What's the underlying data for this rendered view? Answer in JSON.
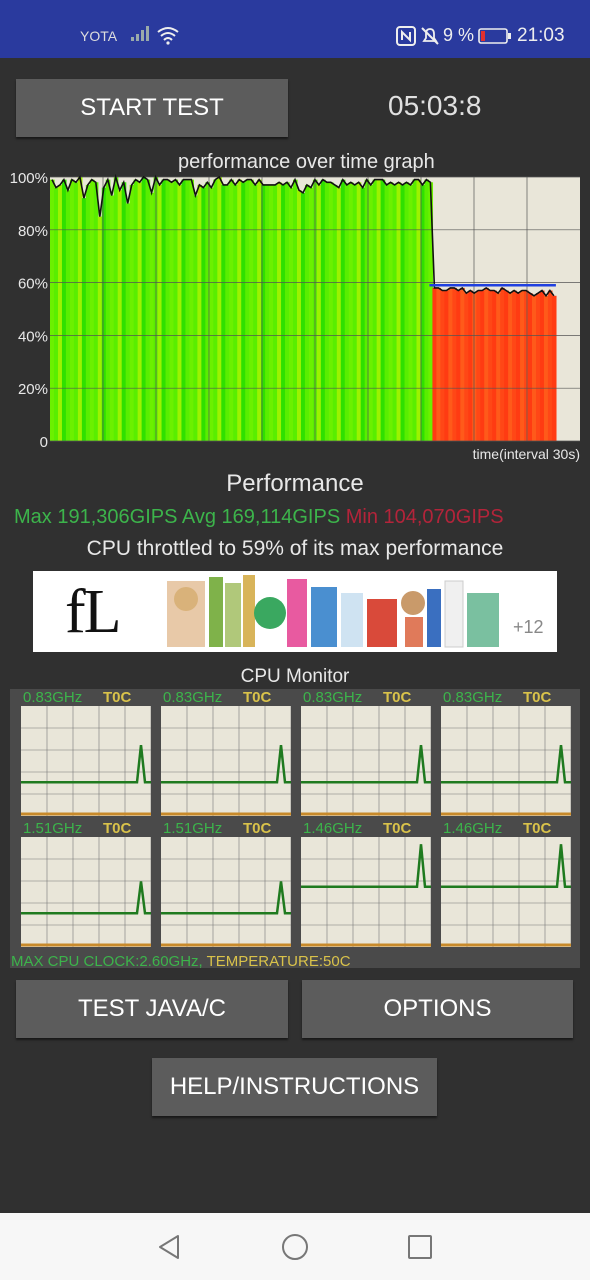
{
  "status_bar": {
    "carrier": "YOTA",
    "battery_percent": "9 %",
    "time": "21:03",
    "icons": [
      "signal-icon",
      "wifi-icon",
      "nfc-icon",
      "mute-icon",
      "battery-low-icon"
    ]
  },
  "controls": {
    "start_test_label": "START TEST",
    "timer": "05:03:8",
    "test_java_label": "TEST JAVA/C",
    "options_label": "OPTIONS",
    "help_label": "HELP/INSTRUCTIONS"
  },
  "graph": {
    "title": "performance over time graph",
    "y_ticks": [
      "100%",
      "80%",
      "60%",
      "40%",
      "20%",
      "0"
    ],
    "x_label": "time(interval 30s)",
    "throttle_line_value": 59
  },
  "chart_data": {
    "type": "area",
    "title": "performance over time graph",
    "xlabel": "time(interval 30s)",
    "ylabel": "",
    "ylim": [
      0,
      100
    ],
    "yticks": [
      "100%",
      "80%",
      "60%",
      "40%",
      "20%",
      "0"
    ],
    "grid": true,
    "series": [
      {
        "values": [
          99,
          96,
          97,
          99,
          95,
          99,
          98,
          100,
          92,
          97,
          99,
          98,
          85,
          96,
          99,
          93,
          100,
          95,
          98,
          90,
          97,
          99,
          98,
          100,
          99,
          94,
          100,
          97,
          99,
          99,
          98,
          99,
          97,
          99,
          99,
          99,
          93,
          97,
          96,
          98,
          96,
          99,
          100,
          97,
          97,
          99,
          97,
          99,
          98,
          99,
          99,
          97,
          99,
          97,
          97,
          97,
          97,
          98,
          97,
          98,
          96,
          99,
          95,
          94,
          97,
          96,
          99,
          97,
          99,
          98,
          98,
          97,
          96,
          99,
          97,
          98,
          97,
          98,
          96,
          99,
          97,
          99,
          99,
          99,
          97,
          98,
          97,
          98,
          97,
          98,
          97,
          99,
          99,
          97,
          99,
          98,
          58,
          58,
          57,
          57,
          58,
          58,
          57,
          58,
          56,
          57,
          56,
          57,
          57,
          58,
          57,
          57,
          56,
          58,
          57,
          56,
          57,
          56,
          57,
          57,
          56,
          55,
          56,
          57,
          55,
          57,
          55
        ]
      }
    ]
  },
  "performance": {
    "title": "Performance",
    "max": "Max 191,306GIPS",
    "avg": "Avg 169,114GIPS",
    "min": "Min 104,070GIPS",
    "throttle_text": "CPU throttled to 59% of its max performance"
  },
  "ad": {
    "logo_text": "fL",
    "more_text": "+12"
  },
  "cpu_monitor": {
    "title": "CPU Monitor",
    "cores": [
      {
        "freq": "0.83GHz",
        "temp": "T0C",
        "base": 30,
        "peak": 65
      },
      {
        "freq": "0.83GHz",
        "temp": "T0C",
        "base": 30,
        "peak": 65
      },
      {
        "freq": "0.83GHz",
        "temp": "T0C",
        "base": 30,
        "peak": 65
      },
      {
        "freq": "0.83GHz",
        "temp": "T0C",
        "base": 30,
        "peak": 65
      },
      {
        "freq": "1.51GHz",
        "temp": "T0C",
        "base": 30,
        "peak": 60
      },
      {
        "freq": "1.51GHz",
        "temp": "T0C",
        "base": 30,
        "peak": 60
      },
      {
        "freq": "1.46GHz",
        "temp": "T0C",
        "base": 55,
        "peak": 95
      },
      {
        "freq": "1.46GHz",
        "temp": "T0C",
        "base": 55,
        "peak": 95
      }
    ],
    "footer_clock": "MAX CPU CLOCK:2.60GHz,",
    "footer_temp": "TEMPERATURE:50C"
  },
  "nav": {
    "icons": [
      "back-icon",
      "home-icon",
      "recents-icon"
    ]
  }
}
